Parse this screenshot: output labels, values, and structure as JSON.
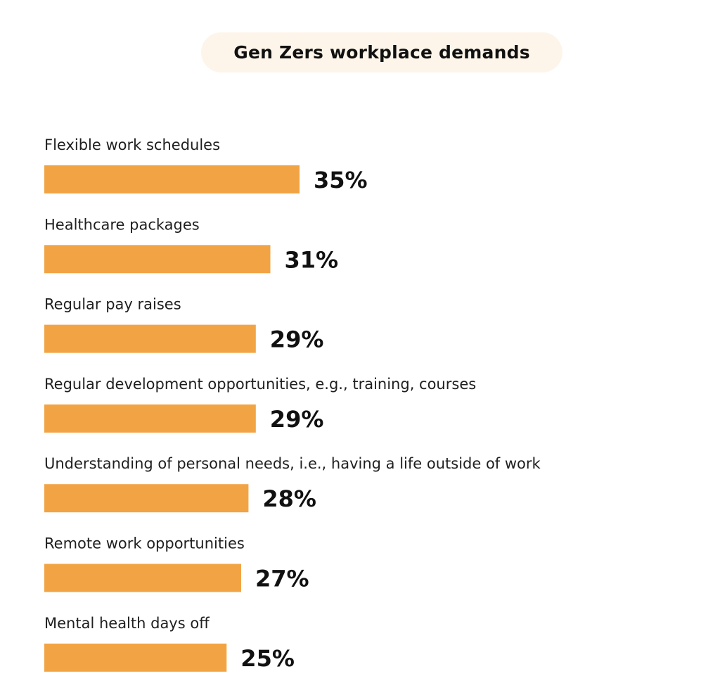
{
  "chart_data": {
    "type": "bar",
    "orientation": "horizontal",
    "title": "Gen Zers workplace demands",
    "categories": [
      "Flexible work schedules",
      "Healthcare packages",
      "Regular pay raises",
      "Regular development opportunities, e.g., training, courses",
      "Understanding of personal needs, i.e., having a life outside of work",
      "Remote work opportunities",
      "Mental health days off"
    ],
    "values": [
      35,
      31,
      29,
      29,
      28,
      27,
      25
    ],
    "value_labels": [
      "35%",
      "31%",
      "29%",
      "29%",
      "28%",
      "27%",
      "25%"
    ],
    "unit": "%",
    "xlim": [
      0,
      35
    ],
    "grid": false,
    "legend": "none",
    "bar_color": "#f2a444"
  }
}
